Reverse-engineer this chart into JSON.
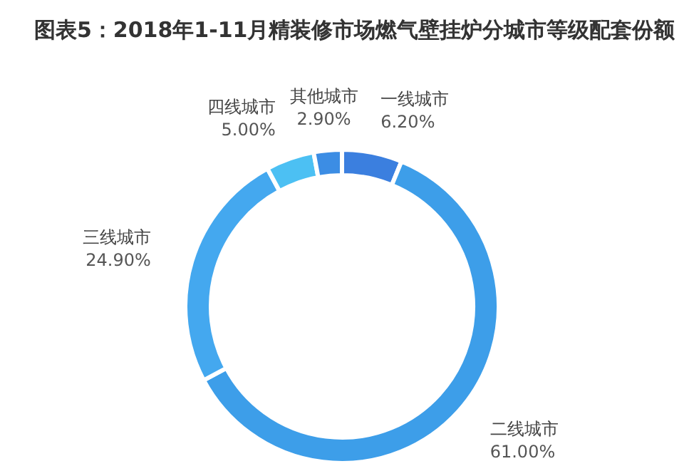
{
  "chart_data": {
    "type": "donut",
    "title": "图表5：2018年1-11月精装修市场燃气壁挂炉分城市等级配套份额",
    "categories": [
      "一线城市",
      "二线城市",
      "三线城市",
      "四线城市",
      "其他城市"
    ],
    "values": [
      6.2,
      61.0,
      24.9,
      5.0,
      2.9
    ],
    "value_labels": [
      "6.20%",
      "61.00%",
      "24.90%",
      "5.00%",
      "2.90%"
    ],
    "colors": [
      "#3b7fdf",
      "#3d9ee9",
      "#44a8ef",
      "#4cc0f3",
      "#3c8de4"
    ],
    "legend": false
  }
}
